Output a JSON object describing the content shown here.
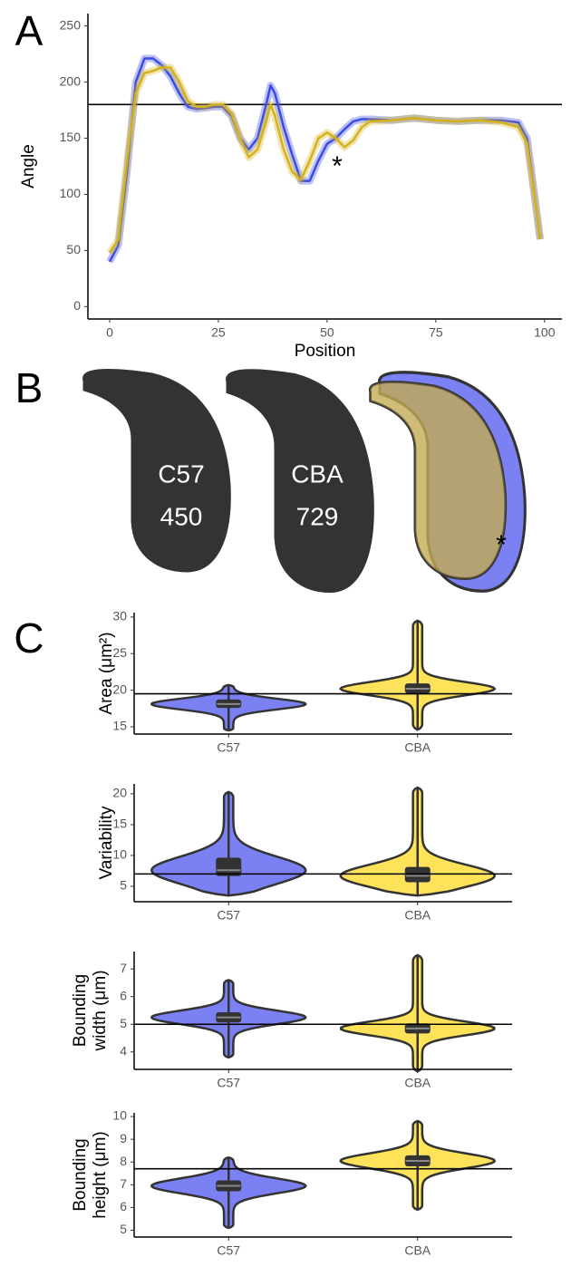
{
  "chart_data": [
    {
      "type": "line",
      "panel_label": "A",
      "xlabel": "Position",
      "ylabel": "Angle",
      "x": [
        0,
        2,
        4,
        6,
        8,
        10,
        12,
        14,
        16,
        18,
        20,
        22,
        24,
        26,
        28,
        30,
        32,
        34,
        36,
        37,
        38,
        40,
        42,
        44,
        46,
        48,
        50,
        52,
        54,
        56,
        58,
        60,
        65,
        70,
        75,
        80,
        85,
        90,
        94,
        96,
        98,
        99
      ],
      "series": [
        {
          "color": "#3b4be3",
          "values": [
            40,
            55,
            120,
            200,
            221,
            221,
            215,
            205,
            190,
            178,
            176,
            177,
            178,
            178,
            170,
            150,
            140,
            150,
            180,
            197,
            190,
            160,
            135,
            112,
            112,
            130,
            145,
            150,
            158,
            165,
            167,
            167,
            166,
            168,
            166,
            165,
            166,
            166,
            164,
            150,
            90,
            60
          ]
        },
        {
          "color": "#d4b21c",
          "values": [
            48,
            60,
            130,
            190,
            208,
            210,
            213,
            213,
            200,
            183,
            178,
            178,
            180,
            180,
            172,
            150,
            133,
            140,
            165,
            180,
            170,
            140,
            120,
            113,
            130,
            150,
            155,
            150,
            142,
            148,
            160,
            165,
            166,
            168,
            166,
            165,
            166,
            164,
            160,
            145,
            90,
            60
          ]
        }
      ],
      "hline": 180,
      "annotation": "*",
      "xlim": [
        -5,
        104
      ],
      "xticks": [
        0,
        25,
        50,
        75,
        100
      ],
      "ylim": [
        -11,
        261
      ],
      "yticks": [
        0,
        50,
        100,
        150,
        200,
        250
      ]
    },
    {
      "type": "violin",
      "panel_label": "C",
      "ylabel": "Area (μm²)",
      "categories": [
        "C57",
        "CBA"
      ],
      "colors": [
        "#7b80f2",
        "#fde25a"
      ],
      "min": [
        14.5,
        14.6
      ],
      "q1": [
        17.7,
        19.7
      ],
      "median": [
        18.1,
        20.2
      ],
      "q3": [
        18.6,
        20.8
      ],
      "max": [
        20.7,
        29.5
      ],
      "hline": 19.5,
      "ylim": [
        14,
        30.6
      ],
      "yticks": [
        15,
        20,
        25,
        30
      ]
    },
    {
      "type": "violin",
      "ylabel": "Variability",
      "categories": [
        "C57",
        "CBA"
      ],
      "colors": [
        "#7b80f2",
        "#fde25a"
      ],
      "min": [
        3.5,
        3.5
      ],
      "q1": [
        6.8,
        5.8
      ],
      "median": [
        7.6,
        6.7
      ],
      "q3": [
        9.5,
        8.0
      ],
      "max": [
        20.3,
        21
      ],
      "hline": 7,
      "ylim": [
        2.5,
        21.6
      ],
      "yticks": [
        5,
        10,
        15,
        20
      ]
    },
    {
      "type": "violin",
      "ylabel": [
        "Bounding",
        "width (μm)"
      ],
      "categories": [
        "C57",
        "CBA"
      ],
      "colors": [
        "#7b80f2",
        "#fde25a"
      ],
      "min": [
        3.8,
        3.3
      ],
      "q1": [
        5.1,
        4.7
      ],
      "median": [
        5.25,
        4.85
      ],
      "q3": [
        5.4,
        5.0
      ],
      "max": [
        6.6,
        7.5
      ],
      "hline": 5,
      "ylim": [
        3.37,
        7.63
      ],
      "yticks": [
        4,
        5,
        6,
        7
      ]
    },
    {
      "type": "violin",
      "ylabel": [
        "Bounding",
        "height (μm)"
      ],
      "categories": [
        "C57",
        "CBA"
      ],
      "colors": [
        "#7b80f2",
        "#fde25a"
      ],
      "min": [
        5.1,
        5.9
      ],
      "q1": [
        6.75,
        7.85
      ],
      "median": [
        6.95,
        8.05
      ],
      "q3": [
        7.15,
        8.25
      ],
      "max": [
        8.2,
        9.8
      ],
      "hline": 7.7,
      "ylim": [
        4.7,
        10.16
      ],
      "yticks": [
        5,
        6,
        7,
        8,
        9,
        10
      ]
    }
  ],
  "panel_b": {
    "label": "B",
    "shapes": [
      {
        "name": "C57",
        "count": "450"
      },
      {
        "name": "CBA",
        "count": "729"
      }
    ],
    "annotation": "*"
  }
}
